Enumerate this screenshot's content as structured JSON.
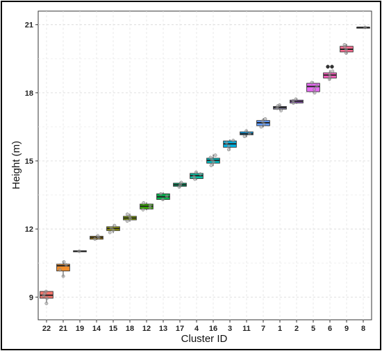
{
  "chart_data": {
    "type": "box",
    "xlabel": "Cluster ID",
    "ylabel": "Height (m)",
    "ylim": [
      8.0,
      21.6
    ],
    "yticks": [
      9,
      12,
      15,
      18,
      21
    ],
    "ytick_labels": [
      "9",
      "12",
      "15",
      "18",
      "21"
    ],
    "grid": true,
    "legend": "none",
    "categories": [
      "22",
      "21",
      "19",
      "14",
      "15",
      "18",
      "12",
      "13",
      "17",
      "4",
      "16",
      "3",
      "11",
      "7",
      "1",
      "2",
      "5",
      "6",
      "9",
      "8"
    ],
    "boxes": [
      {
        "cluster": "22",
        "q1": 8.95,
        "median": 9.08,
        "q3": 9.25,
        "whisker_low": 8.75,
        "whisker_high": 9.28,
        "color": "#F8766D",
        "points": [
          8.72,
          8.95,
          9.05,
          9.15,
          9.25
        ]
      },
      {
        "cluster": "21",
        "q1": 10.15,
        "median": 10.38,
        "q3": 10.45,
        "whisker_low": 9.9,
        "whisker_high": 10.58,
        "color": "#F28E2B",
        "points": [
          9.92,
          10.2,
          10.42,
          10.55
        ]
      },
      {
        "cluster": "19",
        "q1": 11.0,
        "median": 11.02,
        "q3": 11.04,
        "whisker_low": 11.0,
        "whisker_high": 11.05,
        "color": "#DB8E00",
        "points": [
          11.02
        ]
      },
      {
        "cluster": "14",
        "q1": 11.55,
        "median": 11.62,
        "q3": 11.68,
        "whisker_low": 11.52,
        "whisker_high": 11.72,
        "color": "#CC9600",
        "points": [
          11.56,
          11.62,
          11.7
        ]
      },
      {
        "cluster": "15",
        "q1": 11.93,
        "median": 12.02,
        "q3": 12.1,
        "whisker_low": 11.82,
        "whisker_high": 12.18,
        "color": "#A3A500",
        "points": [
          11.85,
          11.95,
          12.05,
          12.15
        ]
      },
      {
        "cluster": "18",
        "q1": 12.4,
        "median": 12.48,
        "q3": 12.56,
        "whisker_low": 12.32,
        "whisker_high": 12.68,
        "color": "#8AAB00",
        "points": [
          12.35,
          12.45,
          12.55,
          12.65
        ]
      },
      {
        "cluster": "12",
        "q1": 12.88,
        "median": 13.0,
        "q3": 13.1,
        "whisker_low": 12.82,
        "whisker_high": 13.18,
        "color": "#39B600",
        "points": [
          12.85,
          12.95,
          13.05,
          13.15
        ]
      },
      {
        "cluster": "13",
        "q1": 13.3,
        "median": 13.42,
        "q3": 13.55,
        "whisker_low": 13.25,
        "whisker_high": 13.62,
        "color": "#00BB4E",
        "points": [
          13.3,
          13.45,
          13.55
        ]
      },
      {
        "cluster": "17",
        "q1": 13.88,
        "median": 13.95,
        "q3": 14.02,
        "whisker_low": 13.82,
        "whisker_high": 14.08,
        "color": "#00BF7D",
        "points": [
          13.85,
          13.95,
          14.05
        ]
      },
      {
        "cluster": "4",
        "q1": 14.22,
        "median": 14.35,
        "q3": 14.45,
        "whisker_low": 14.15,
        "whisker_high": 14.52,
        "color": "#00C1A3",
        "points": [
          14.2,
          14.3,
          14.42,
          14.5
        ]
      },
      {
        "cluster": "16",
        "q1": 14.9,
        "median": 15.02,
        "q3": 15.12,
        "whisker_low": 14.78,
        "whisker_high": 15.28,
        "color": "#00BFC4",
        "points": [
          14.8,
          14.95,
          15.05,
          15.15,
          15.25
        ]
      },
      {
        "cluster": "3",
        "q1": 15.6,
        "median": 15.75,
        "q3": 15.88,
        "whisker_low": 15.45,
        "whisker_high": 15.95,
        "color": "#00B4E4",
        "points": [
          15.5,
          15.65,
          15.8,
          15.9
        ]
      },
      {
        "cluster": "11",
        "q1": 16.15,
        "median": 16.2,
        "q3": 16.28,
        "whisker_low": 16.05,
        "whisker_high": 16.35,
        "color": "#00A9FF",
        "points": [
          16.08,
          16.2,
          16.32
        ]
      },
      {
        "cluster": "7",
        "q1": 16.55,
        "median": 16.68,
        "q3": 16.78,
        "whisker_low": 16.48,
        "whisker_high": 16.88,
        "color": "#619CFF",
        "points": [
          16.5,
          16.62,
          16.75,
          16.85
        ]
      },
      {
        "cluster": "1",
        "q1": 17.28,
        "median": 17.35,
        "q3": 17.4,
        "whisker_low": 17.2,
        "whisker_high": 17.48,
        "color": "#9E9AC8",
        "points": [
          17.22,
          17.32,
          17.42,
          17.46
        ]
      },
      {
        "cluster": "2",
        "q1": 17.55,
        "median": 17.62,
        "q3": 17.68,
        "whisker_low": 17.52,
        "whisker_high": 17.75,
        "color": "#C77CFF",
        "points": [
          17.55,
          17.65,
          17.72
        ]
      },
      {
        "cluster": "5",
        "q1": 18.05,
        "median": 18.28,
        "q3": 18.42,
        "whisker_low": 17.98,
        "whisker_high": 18.5,
        "color": "#E76BF3",
        "points": [
          18.0,
          18.15,
          18.3,
          18.45
        ]
      },
      {
        "cluster": "6",
        "q1": 18.65,
        "median": 18.78,
        "q3": 18.88,
        "whisker_low": 18.55,
        "whisker_high": 19.0,
        "color": "#FF61C3",
        "points": [
          18.6,
          18.72,
          18.85,
          18.95
        ],
        "outliers": [
          19.15,
          19.15
        ]
      },
      {
        "cluster": "9",
        "q1": 19.8,
        "median": 19.92,
        "q3": 20.05,
        "whisker_low": 19.72,
        "whisker_high": 20.15,
        "color": "#FF6C91",
        "points": [
          19.75,
          19.9,
          20.02,
          20.12
        ]
      },
      {
        "cluster": "8",
        "q1": 20.87,
        "median": 20.88,
        "q3": 20.89,
        "whisker_low": 20.86,
        "whisker_high": 20.9,
        "color": "#F8766D",
        "points": [
          20.88
        ]
      }
    ]
  }
}
